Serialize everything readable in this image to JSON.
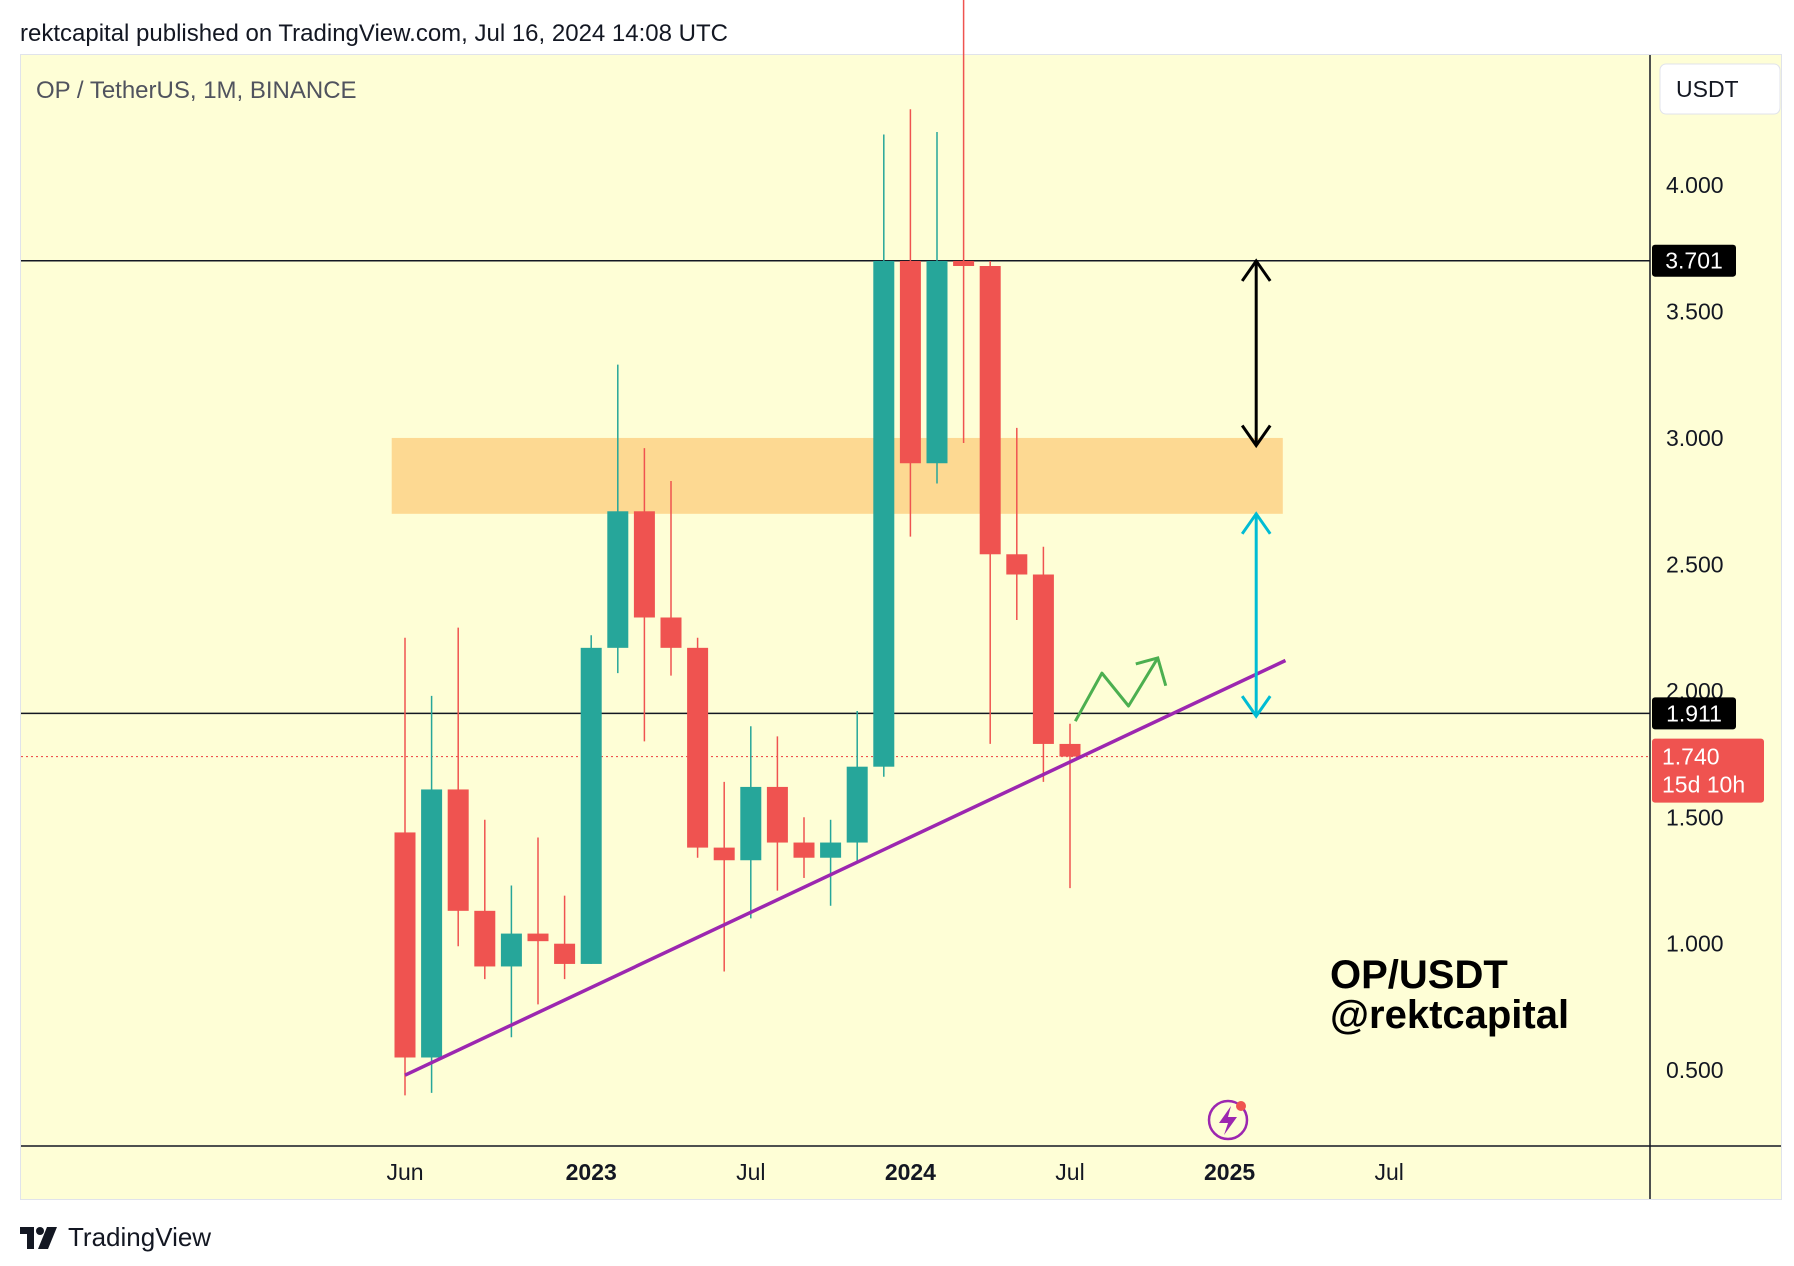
{
  "header": {
    "published_line": "rektcapital published on TradingView.com, Jul 16, 2024 14:08 UTC"
  },
  "footer": {
    "brand": "TradingView",
    "logo_icon": "tradingview-logo-icon"
  },
  "colors": {
    "background": "#fefed6",
    "up": "#26a69a",
    "down": "#ef5350",
    "zone": "#fdd992",
    "trendline": "#9c27b0",
    "arrow_black": "#000000",
    "arrow_cyan": "#00bcd4",
    "projection": "#4caf50",
    "price_dotted": "#ef5350"
  },
  "chart_data": {
    "type": "candlestick",
    "symbol_label": "OP / TetherUS, 1M, BINANCE",
    "currency_button": "USDT",
    "watermark": [
      "OP/USDT",
      "@rektcapital"
    ],
    "y_axis": {
      "ticks": [
        "0.500",
        "1.000",
        "1.500",
        "2.000",
        "2.500",
        "3.000",
        "3.500",
        "4.000"
      ],
      "range": [
        0.2,
        4.55
      ]
    },
    "x_axis": {
      "ticks": [
        {
          "label": "Jun",
          "month_index": 0,
          "bold": false
        },
        {
          "label": "2023",
          "month_index": 7,
          "bold": true
        },
        {
          "label": "Jul",
          "month_index": 13,
          "bold": false
        },
        {
          "label": "2024",
          "month_index": 19,
          "bold": true
        },
        {
          "label": "Jul",
          "month_index": 25,
          "bold": false
        },
        {
          "label": "2025",
          "month_index": 31,
          "bold": true
        },
        {
          "label": "Jul",
          "month_index": 37,
          "bold": false
        }
      ]
    },
    "candles": [
      {
        "t": "2022-06",
        "o": 1.44,
        "h": 2.21,
        "l": 0.4,
        "c": 0.55
      },
      {
        "t": "2022-07",
        "o": 0.55,
        "h": 1.98,
        "l": 0.41,
        "c": 1.61
      },
      {
        "t": "2022-08",
        "o": 1.61,
        "h": 2.25,
        "l": 0.99,
        "c": 1.13
      },
      {
        "t": "2022-09",
        "o": 1.13,
        "h": 1.49,
        "l": 0.86,
        "c": 0.91
      },
      {
        "t": "2022-10",
        "o": 0.91,
        "h": 1.23,
        "l": 0.63,
        "c": 1.04
      },
      {
        "t": "2022-11",
        "o": 1.04,
        "h": 1.42,
        "l": 0.76,
        "c": 1.01
      },
      {
        "t": "2022-12",
        "o": 1.0,
        "h": 1.19,
        "l": 0.86,
        "c": 0.92
      },
      {
        "t": "2023-01",
        "o": 0.92,
        "h": 2.22,
        "l": 0.92,
        "c": 2.17
      },
      {
        "t": "2023-02",
        "o": 2.17,
        "h": 3.29,
        "l": 2.07,
        "c": 2.71
      },
      {
        "t": "2023-03",
        "o": 2.71,
        "h": 2.96,
        "l": 1.8,
        "c": 2.29
      },
      {
        "t": "2023-04",
        "o": 2.29,
        "h": 2.83,
        "l": 2.06,
        "c": 2.17
      },
      {
        "t": "2023-05",
        "o": 2.17,
        "h": 2.21,
        "l": 1.34,
        "c": 1.38
      },
      {
        "t": "2023-06",
        "o": 1.38,
        "h": 1.64,
        "l": 0.89,
        "c": 1.33
      },
      {
        "t": "2023-07",
        "o": 1.33,
        "h": 1.86,
        "l": 1.1,
        "c": 1.62
      },
      {
        "t": "2023-08",
        "o": 1.62,
        "h": 1.82,
        "l": 1.21,
        "c": 1.4
      },
      {
        "t": "2023-09",
        "o": 1.4,
        "h": 1.5,
        "l": 1.26,
        "c": 1.34
      },
      {
        "t": "2023-10",
        "o": 1.34,
        "h": 1.49,
        "l": 1.15,
        "c": 1.4
      },
      {
        "t": "2023-11",
        "o": 1.4,
        "h": 1.92,
        "l": 1.32,
        "c": 1.7
      },
      {
        "t": "2023-12",
        "o": 1.7,
        "h": 4.2,
        "l": 1.66,
        "c": 3.7
      },
      {
        "t": "2024-01",
        "o": 3.7,
        "h": 4.3,
        "l": 2.61,
        "c": 2.9
      },
      {
        "t": "2024-02",
        "o": 2.9,
        "h": 4.21,
        "l": 2.82,
        "c": 3.7
      },
      {
        "t": "2024-03",
        "o": 3.7,
        "h": 4.87,
        "l": 2.98,
        "c": 3.68
      },
      {
        "t": "2024-04",
        "o": 3.68,
        "h": 3.7,
        "l": 1.79,
        "c": 2.54
      },
      {
        "t": "2024-05",
        "o": 2.54,
        "h": 3.04,
        "l": 2.28,
        "c": 2.46
      },
      {
        "t": "2024-06",
        "o": 2.46,
        "h": 2.57,
        "l": 1.64,
        "c": 1.79
      },
      {
        "t": "2024-07",
        "o": 1.79,
        "h": 1.87,
        "l": 1.22,
        "c": 1.74
      }
    ],
    "horizontal_levels": [
      {
        "price": 3.701,
        "label": "3.701"
      },
      {
        "price": 1.911,
        "label": "1.911"
      }
    ],
    "current_price": {
      "price": 1.74,
      "label": "1.740",
      "countdown": "15d 10h"
    },
    "resistance_zone": {
      "from": 2.7,
      "to": 3.0,
      "start_month": -0.5,
      "end_month": 33.0
    },
    "trendline": {
      "start": {
        "month": 0,
        "price": 0.48
      },
      "end": {
        "month": 33.1,
        "price": 2.12
      }
    },
    "arrows": [
      {
        "name": "black",
        "month": 32.0,
        "from": 3.7,
        "to": 2.97
      },
      {
        "name": "cyan",
        "month": 32.0,
        "from": 2.7,
        "to": 1.9
      }
    ],
    "projection_path": [
      {
        "month": 25.2,
        "price": 1.88
      },
      {
        "month": 26.2,
        "price": 2.07
      },
      {
        "month": 27.2,
        "price": 1.94
      },
      {
        "month": 28.3,
        "price": 2.13
      },
      {
        "month": 28.6,
        "price": 2.02
      }
    ]
  }
}
